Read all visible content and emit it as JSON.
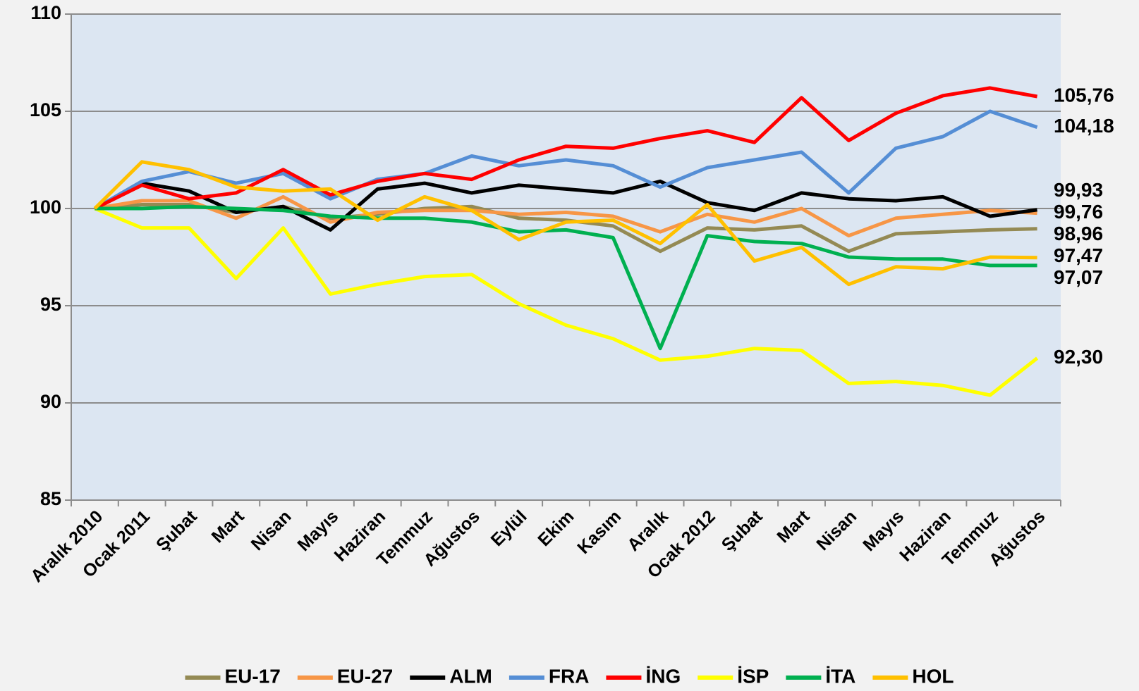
{
  "chart_data": {
    "type": "line",
    "categories": [
      "Aralık 2010",
      "Ocak 2011",
      "Şubat",
      "Mart",
      "Nisan",
      "Mayıs",
      "Haziran",
      "Temmuz",
      "Ağustos",
      "Eylül",
      "Ekim",
      "Kasım",
      "Aralık",
      "Ocak 2012",
      "Şubat",
      "Mart",
      "Nisan",
      "Mayıs",
      "Haziran",
      "Temmuz",
      "Ağustos"
    ],
    "ylim": [
      85,
      110
    ],
    "yticks": [
      85,
      90,
      95,
      100,
      105,
      110
    ],
    "grid": true,
    "legend": "bottom",
    "series": [
      {
        "name": "EU-17",
        "color": "#948a54",
        "values": [
          100,
          100.2,
          100.2,
          99.8,
          100.1,
          99.5,
          99.7,
          100.0,
          100.1,
          99.5,
          99.4,
          99.1,
          97.8,
          99.0,
          98.9,
          99.1,
          97.8,
          98.7,
          98.8,
          98.9,
          98.96
        ],
        "value_labels": [
          null,
          null,
          null,
          null,
          null,
          null,
          null,
          null,
          null,
          null,
          null,
          null,
          null,
          null,
          null,
          null,
          null,
          null,
          null,
          null,
          "98,96"
        ]
      },
      {
        "name": "EU-27",
        "color": "#f79646",
        "values": [
          100,
          100.4,
          100.4,
          99.5,
          100.6,
          99.3,
          99.8,
          99.9,
          99.9,
          99.7,
          99.8,
          99.6,
          98.8,
          99.7,
          99.3,
          100.0,
          98.6,
          99.5,
          99.7,
          99.9,
          99.76
        ],
        "value_labels": [
          null,
          null,
          null,
          null,
          null,
          null,
          null,
          null,
          null,
          null,
          null,
          null,
          null,
          null,
          null,
          null,
          null,
          null,
          null,
          null,
          "99,76"
        ]
      },
      {
        "name": "ALM",
        "color": "#000000",
        "values": [
          100,
          101.3,
          100.9,
          99.8,
          100.1,
          98.9,
          101.0,
          101.3,
          100.8,
          101.2,
          101.0,
          100.8,
          101.4,
          100.3,
          99.9,
          100.8,
          100.5,
          100.4,
          100.6,
          99.6,
          99.93
        ],
        "value_labels": [
          null,
          null,
          null,
          null,
          null,
          null,
          null,
          null,
          null,
          null,
          null,
          null,
          null,
          null,
          null,
          null,
          null,
          null,
          null,
          null,
          "99,93"
        ]
      },
      {
        "name": "FRA",
        "color": "#558ed5",
        "values": [
          100,
          101.4,
          101.9,
          101.3,
          101.8,
          100.5,
          101.5,
          101.8,
          102.7,
          102.2,
          102.5,
          102.2,
          101.1,
          102.1,
          102.5,
          102.9,
          100.8,
          103.1,
          103.7,
          105.0,
          104.18
        ],
        "value_labels": [
          null,
          null,
          null,
          null,
          null,
          null,
          null,
          null,
          null,
          null,
          null,
          null,
          null,
          null,
          null,
          null,
          null,
          null,
          null,
          null,
          "104,18"
        ]
      },
      {
        "name": "İNG",
        "color": "#ff0000",
        "values": [
          100,
          101.2,
          100.5,
          100.8,
          102.0,
          100.7,
          101.4,
          101.8,
          101.5,
          102.5,
          103.2,
          103.1,
          103.6,
          104.0,
          103.4,
          105.7,
          103.5,
          104.9,
          105.8,
          106.2,
          105.76
        ],
        "value_labels": [
          null,
          null,
          null,
          null,
          null,
          null,
          null,
          null,
          null,
          null,
          null,
          null,
          null,
          null,
          null,
          null,
          null,
          null,
          null,
          null,
          "105,76"
        ]
      },
      {
        "name": "İSP",
        "color": "#ffff00",
        "values": [
          100,
          99.0,
          99.0,
          96.4,
          99.0,
          95.6,
          96.1,
          96.5,
          96.6,
          95.1,
          94.0,
          93.3,
          92.2,
          92.4,
          92.8,
          92.7,
          91.0,
          91.1,
          90.9,
          90.4,
          92.3
        ],
        "value_labels": [
          null,
          null,
          null,
          null,
          null,
          null,
          null,
          null,
          null,
          null,
          null,
          null,
          null,
          null,
          null,
          null,
          null,
          null,
          null,
          null,
          "92,30"
        ]
      },
      {
        "name": "İTA",
        "color": "#00b050",
        "values": [
          100,
          100.0,
          100.1,
          100.0,
          99.9,
          99.6,
          99.5,
          99.5,
          99.3,
          98.8,
          98.9,
          98.5,
          92.8,
          98.6,
          98.3,
          98.2,
          97.5,
          97.4,
          97.4,
          97.07,
          97.07
        ],
        "value_labels": [
          null,
          null,
          null,
          null,
          null,
          null,
          null,
          null,
          null,
          null,
          null,
          null,
          null,
          null,
          null,
          null,
          null,
          null,
          null,
          null,
          "97,07"
        ]
      },
      {
        "name": "HOL",
        "color": "#ffc000",
        "values": [
          100,
          102.4,
          102.0,
          101.1,
          100.9,
          101.0,
          99.4,
          100.6,
          99.9,
          98.4,
          99.3,
          99.4,
          98.2,
          100.2,
          97.3,
          98.0,
          96.1,
          97.0,
          96.9,
          97.5,
          97.47
        ],
        "value_labels": [
          null,
          null,
          null,
          null,
          null,
          null,
          null,
          null,
          null,
          null,
          null,
          null,
          null,
          null,
          null,
          null,
          null,
          null,
          null,
          null,
          "97,47"
        ]
      }
    ]
  }
}
